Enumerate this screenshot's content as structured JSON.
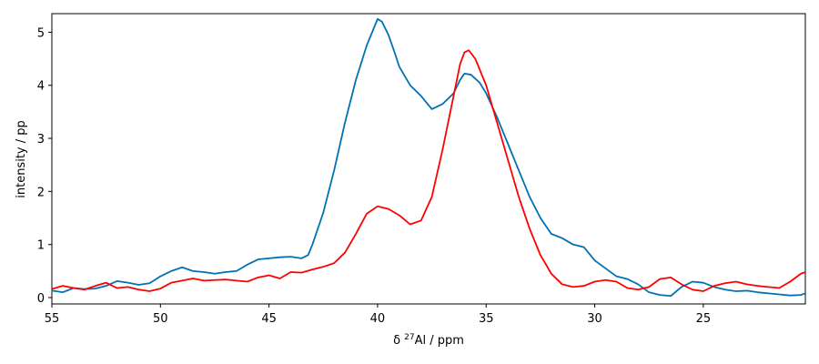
{
  "chart_data": {
    "type": "line",
    "xlabel_prefix": "δ ",
    "xlabel_sup": "27",
    "xlabel_suffix": "Al / ppm",
    "ylabel": "intensity / pp",
    "xlim": [
      55,
      20.3
    ],
    "ylim": [
      -0.12,
      5.35
    ],
    "xticks": [
      55,
      50,
      45,
      40,
      35,
      30,
      25
    ],
    "yticks": [
      0,
      1,
      2,
      3,
      4,
      5
    ],
    "grid": false,
    "series": [
      {
        "color": "#0072b2",
        "points": [
          [
            55.0,
            0.13
          ],
          [
            54.5,
            0.1
          ],
          [
            54.0,
            0.18
          ],
          [
            53.5,
            0.16
          ],
          [
            53.0,
            0.17
          ],
          [
            52.5,
            0.22
          ],
          [
            52.0,
            0.31
          ],
          [
            51.5,
            0.28
          ],
          [
            51.0,
            0.24
          ],
          [
            50.5,
            0.27
          ],
          [
            50.0,
            0.4
          ],
          [
            49.5,
            0.5
          ],
          [
            49.0,
            0.57
          ],
          [
            48.5,
            0.5
          ],
          [
            48.0,
            0.48
          ],
          [
            47.5,
            0.45
          ],
          [
            47.0,
            0.48
          ],
          [
            46.5,
            0.5
          ],
          [
            46.0,
            0.62
          ],
          [
            45.5,
            0.72
          ],
          [
            45.0,
            0.74
          ],
          [
            44.5,
            0.76
          ],
          [
            44.0,
            0.77
          ],
          [
            43.5,
            0.74
          ],
          [
            43.2,
            0.8
          ],
          [
            43.0,
            1.0
          ],
          [
            42.5,
            1.6
          ],
          [
            42.0,
            2.4
          ],
          [
            41.5,
            3.3
          ],
          [
            41.0,
            4.1
          ],
          [
            40.5,
            4.75
          ],
          [
            40.2,
            5.05
          ],
          [
            40.0,
            5.25
          ],
          [
            39.8,
            5.2
          ],
          [
            39.5,
            4.95
          ],
          [
            39.2,
            4.6
          ],
          [
            39.0,
            4.35
          ],
          [
            38.5,
            4.0
          ],
          [
            38.0,
            3.8
          ],
          [
            37.5,
            3.55
          ],
          [
            37.0,
            3.65
          ],
          [
            36.5,
            3.85
          ],
          [
            36.2,
            4.1
          ],
          [
            36.0,
            4.22
          ],
          [
            35.7,
            4.2
          ],
          [
            35.3,
            4.05
          ],
          [
            35.0,
            3.85
          ],
          [
            34.5,
            3.4
          ],
          [
            34.0,
            2.9
          ],
          [
            33.5,
            2.4
          ],
          [
            33.0,
            1.9
          ],
          [
            32.5,
            1.5
          ],
          [
            32.0,
            1.2
          ],
          [
            31.5,
            1.12
          ],
          [
            31.0,
            1.0
          ],
          [
            30.5,
            0.95
          ],
          [
            30.0,
            0.7
          ],
          [
            29.5,
            0.55
          ],
          [
            29.0,
            0.4
          ],
          [
            28.5,
            0.35
          ],
          [
            28.0,
            0.25
          ],
          [
            27.5,
            0.1
          ],
          [
            27.0,
            0.05
          ],
          [
            26.5,
            0.03
          ],
          [
            26.0,
            0.2
          ],
          [
            25.5,
            0.3
          ],
          [
            25.0,
            0.28
          ],
          [
            24.5,
            0.2
          ],
          [
            24.0,
            0.15
          ],
          [
            23.5,
            0.12
          ],
          [
            23.0,
            0.13
          ],
          [
            22.5,
            0.1
          ],
          [
            22.0,
            0.08
          ],
          [
            21.5,
            0.06
          ],
          [
            21.0,
            0.04
          ],
          [
            20.5,
            0.05
          ],
          [
            20.3,
            0.08
          ]
        ]
      },
      {
        "color": "#ff0000",
        "points": [
          [
            55.0,
            0.16
          ],
          [
            54.5,
            0.22
          ],
          [
            54.0,
            0.18
          ],
          [
            53.5,
            0.15
          ],
          [
            53.0,
            0.22
          ],
          [
            52.5,
            0.28
          ],
          [
            52.0,
            0.18
          ],
          [
            51.5,
            0.2
          ],
          [
            51.0,
            0.15
          ],
          [
            50.5,
            0.12
          ],
          [
            50.0,
            0.17
          ],
          [
            49.5,
            0.28
          ],
          [
            49.0,
            0.32
          ],
          [
            48.5,
            0.36
          ],
          [
            48.0,
            0.32
          ],
          [
            47.5,
            0.33
          ],
          [
            47.0,
            0.34
          ],
          [
            46.5,
            0.32
          ],
          [
            46.0,
            0.3
          ],
          [
            45.5,
            0.38
          ],
          [
            45.0,
            0.42
          ],
          [
            44.5,
            0.36
          ],
          [
            44.0,
            0.48
          ],
          [
            43.5,
            0.47
          ],
          [
            43.0,
            0.53
          ],
          [
            42.5,
            0.58
          ],
          [
            42.0,
            0.65
          ],
          [
            41.5,
            0.85
          ],
          [
            41.0,
            1.2
          ],
          [
            40.5,
            1.58
          ],
          [
            40.0,
            1.72
          ],
          [
            39.5,
            1.67
          ],
          [
            39.0,
            1.55
          ],
          [
            38.5,
            1.38
          ],
          [
            38.0,
            1.45
          ],
          [
            37.5,
            1.9
          ],
          [
            37.0,
            2.8
          ],
          [
            36.5,
            3.8
          ],
          [
            36.2,
            4.4
          ],
          [
            36.0,
            4.62
          ],
          [
            35.8,
            4.66
          ],
          [
            35.5,
            4.5
          ],
          [
            35.0,
            4.0
          ],
          [
            34.5,
            3.3
          ],
          [
            34.0,
            2.6
          ],
          [
            33.5,
            1.9
          ],
          [
            33.0,
            1.3
          ],
          [
            32.5,
            0.8
          ],
          [
            32.0,
            0.45
          ],
          [
            31.5,
            0.25
          ],
          [
            31.0,
            0.2
          ],
          [
            30.5,
            0.22
          ],
          [
            30.0,
            0.3
          ],
          [
            29.5,
            0.33
          ],
          [
            29.0,
            0.3
          ],
          [
            28.5,
            0.18
          ],
          [
            28.0,
            0.15
          ],
          [
            27.5,
            0.2
          ],
          [
            27.0,
            0.35
          ],
          [
            26.5,
            0.38
          ],
          [
            26.0,
            0.25
          ],
          [
            25.5,
            0.15
          ],
          [
            25.0,
            0.12
          ],
          [
            24.5,
            0.22
          ],
          [
            24.0,
            0.27
          ],
          [
            23.5,
            0.3
          ],
          [
            23.0,
            0.25
          ],
          [
            22.5,
            0.22
          ],
          [
            22.0,
            0.2
          ],
          [
            21.5,
            0.18
          ],
          [
            21.0,
            0.3
          ],
          [
            20.5,
            0.45
          ],
          [
            20.3,
            0.48
          ]
        ]
      }
    ]
  }
}
